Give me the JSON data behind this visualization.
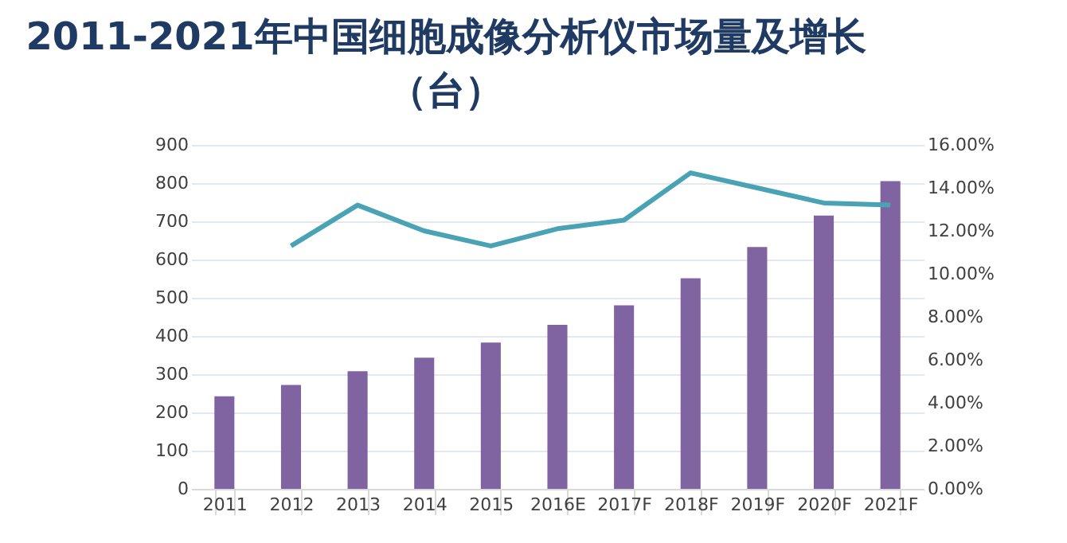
{
  "chart_data": {
    "type": "bar",
    "title": "2011-2021年中国细胞成像分析仪市场量及增长（台）",
    "categories": [
      "2011",
      "2012",
      "2013",
      "2014",
      "2015",
      "2016E",
      "2017F",
      "2018F",
      "2019F",
      "2020F",
      "2021F"
    ],
    "series": [
      {
        "color": "#8064a2",
        "values": [
          242,
          272,
          308,
          343,
          383,
          429,
          480,
          551,
          633,
          715,
          805
        ]
      },
      {
        "type": "line",
        "axis": "y2",
        "color": "#4aa3b5",
        "values": [
          null,
          11.3,
          13.2,
          12.0,
          11.3,
          12.1,
          12.5,
          14.7,
          14.0,
          13.3,
          13.2
        ]
      }
    ],
    "ylim": [
      0,
      900
    ],
    "yticks": [
      0,
      100,
      200,
      300,
      400,
      500,
      600,
      700,
      800,
      900
    ],
    "y2lim": [
      0,
      16
    ],
    "y2ticks": [
      {
        "value": 0,
        "label": "0.00%"
      },
      {
        "value": 2,
        "label": "2.00%"
      },
      {
        "value": 4,
        "label": "4.00%"
      },
      {
        "value": 6,
        "label": "6.00%"
      },
      {
        "value": 8,
        "label": "8.00%"
      },
      {
        "value": 10,
        "label": "10.00%"
      },
      {
        "value": 12,
        "label": "12.00%"
      },
      {
        "value": 14,
        "label": "14.00%"
      },
      {
        "value": 16,
        "label": "16.00%"
      }
    ],
    "grid": "y"
  }
}
